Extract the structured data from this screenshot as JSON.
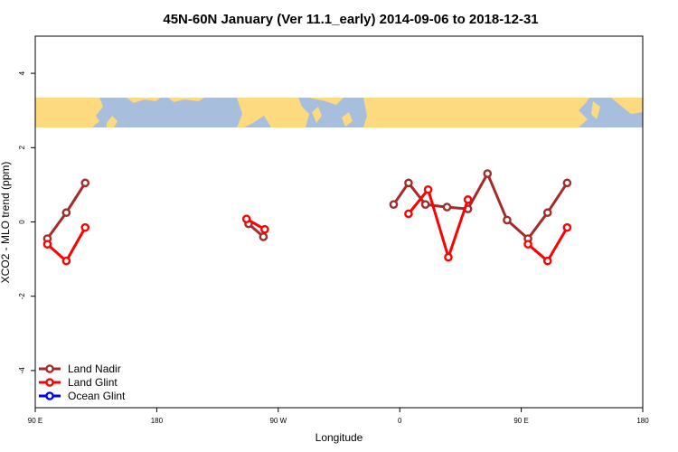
{
  "chart_data": {
    "type": "line",
    "title": "45N-60N January (Ver 11.1_early)   2014-09-06 to 2018-12-31",
    "xlabel": "Longitude",
    "ylabel": "XCO2 - MLO trend (ppm)",
    "xlim": [
      90,
      540
    ],
    "ylim": [
      -5,
      5
    ],
    "x_ticks": [
      {
        "value": 90,
        "label": "90 E"
      },
      {
        "value": 180,
        "label": "180"
      },
      {
        "value": 270,
        "label": "90 W"
      },
      {
        "value": 360,
        "label": "0"
      },
      {
        "value": 450,
        "label": "90 E"
      },
      {
        "value": 540,
        "label": "180"
      }
    ],
    "y_ticks": [
      {
        "value": -4,
        "label": "-4"
      },
      {
        "value": -2,
        "label": "-2"
      },
      {
        "value": 0,
        "label": "0"
      },
      {
        "value": 2,
        "label": "2"
      },
      {
        "value": 4,
        "label": "4"
      }
    ],
    "map_strip": {
      "lat_range": [
        45,
        60
      ],
      "ocean_color": "#a8bedd",
      "land_color": "#fdd980"
    },
    "legend_position": "bottom-left",
    "grid": false,
    "series": [
      {
        "name": "Land Nadir",
        "color": "#a52a2a",
        "segments": [
          [
            [
              99,
              -0.45
            ],
            [
              113,
              0.25
            ],
            [
              127,
              1.05
            ]
          ],
          [
            [
              248,
              -0.05
            ],
            [
              259,
              -0.4
            ]
          ],
          [
            [
              355.5,
              0.47
            ],
            [
              366.5,
              1.05
            ],
            [
              379,
              0.47
            ],
            [
              395,
              0.4
            ],
            [
              410.5,
              0.35
            ],
            [
              425,
              1.3
            ],
            [
              439.5,
              0.05
            ],
            [
              455,
              -0.45
            ],
            [
              469.5,
              0.25
            ],
            [
              484,
              1.05
            ]
          ]
        ]
      },
      {
        "name": "Land Glint",
        "color": "#ff0000",
        "segments": [
          [
            [
              99,
              -0.6
            ],
            [
              113,
              -1.05
            ],
            [
              127,
              -0.15
            ]
          ],
          [
            [
              246.5,
              0.08
            ],
            [
              260,
              -0.2
            ]
          ],
          [
            [
              366.5,
              0.22
            ],
            [
              381,
              0.87
            ],
            [
              396,
              -0.95
            ],
            [
              410.5,
              0.6
            ]
          ],
          [
            [
              455,
              -0.6
            ],
            [
              469.5,
              -1.05
            ],
            [
              484,
              -0.15
            ]
          ]
        ]
      },
      {
        "name": "Ocean Glint",
        "color": "#0000ff",
        "segments": []
      }
    ]
  }
}
